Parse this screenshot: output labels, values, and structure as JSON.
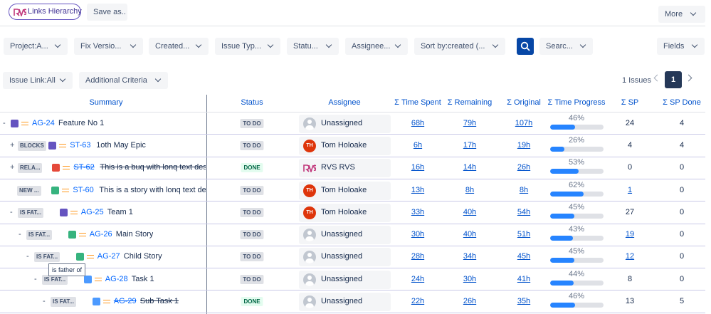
{
  "toolbar": {
    "links_hierarchy": "Links Hierarchy",
    "save_as": "Save as..",
    "more": "More"
  },
  "filters": [
    "Project:A...",
    "Fix Versio...",
    "Created...",
    "Issue Typ...",
    "Statu...",
    "Assignee...",
    "Sort by:created (...",
    "Searc..."
  ],
  "fields": "Fields",
  "filters2": [
    "Issue Link:All",
    "Additional Criteria"
  ],
  "pagination": {
    "count": "1 Issues",
    "page": "1"
  },
  "tooltip": "is father of",
  "table": {
    "columns": [
      "Summary",
      "Status",
      "Assignee",
      "Σ Time Spent",
      "Σ Remaining",
      "Σ Original",
      "Σ Time Progress",
      "Σ SP",
      "Σ SP Done"
    ],
    "rows": [
      {
        "toggle": "-",
        "key": "AG-24",
        "summary": "Feature No 1",
        "status": "TO DO",
        "assignee": "Unassigned",
        "spent": "68h",
        "remaining": "79h",
        "original": "107h",
        "progress": {
          "value": 46,
          "label": "46%"
        },
        "sp": 24,
        "sp_done": 4
      },
      {
        "toggle": "+",
        "link": "BLOCKS",
        "key": "ST-63",
        "summary": "1oth May Epic",
        "status": "TO DO",
        "avatar": "TH",
        "assignee": "Tom Holoake",
        "spent": "6h",
        "remaining": "17h",
        "original": "19h",
        "progress": {
          "value": 26,
          "label": "26%"
        },
        "sp": 4,
        "sp_done": 4
      },
      {
        "toggle": "+",
        "link": "RELA...",
        "key": "ST-62",
        "summary": "This is a buq with lonq text descr...",
        "status": "DONE",
        "assignee": "RVS RVS",
        "spent": "16h",
        "remaining": "14h",
        "original": "26h",
        "progress": {
          "value": 53,
          "label": "53%"
        },
        "sp": 0,
        "sp_done": 0
      },
      {
        "link": "NEW ...",
        "key": "ST-60",
        "summary": "This is a story with lonq text des...",
        "status": "TO DO",
        "avatar": "TH",
        "assignee": "Tom Holoake",
        "spent": "13h",
        "remaining": "8h",
        "original": "8h",
        "progress": {
          "value": 62,
          "label": "62%"
        },
        "sp": 1,
        "sp_done": 0
      },
      {
        "toggle": "-",
        "link": "IS FAT...",
        "key": "AG-25",
        "summary": "Team 1",
        "status": "TO DO",
        "avatar": "TH",
        "assignee": "Tom Holoake",
        "spent": "33h",
        "remaining": "40h",
        "original": "54h",
        "progress": {
          "value": 45,
          "label": "45%"
        },
        "sp": 27,
        "sp_done": 0
      },
      {
        "toggle": "-",
        "link": "IS FAT...",
        "key": "AG-26",
        "summary": "Main Story",
        "status": "TO DO",
        "assignee": "Unassigned",
        "spent": "30h",
        "remaining": "40h",
        "original": "51h",
        "progress": {
          "value": 43,
          "label": "43%"
        },
        "sp": 19,
        "sp_done": 0
      },
      {
        "toggle": "-",
        "link": "IS FAT...",
        "key": "AG-27",
        "summary": "Child Story",
        "status": "TO DO",
        "assignee": "Unassigned",
        "spent": "28h",
        "remaining": "34h",
        "original": "45h",
        "progress": {
          "value": 45,
          "label": "45%"
        },
        "sp": 12,
        "sp_done": 0
      },
      {
        "toggle": "-",
        "link": "IS FAT...",
        "key": "AG-28",
        "summary": "Task 1",
        "status": "TO DO",
        "assignee": "Unassigned",
        "spent": "24h",
        "remaining": "30h",
        "original": "41h",
        "progress": {
          "value": 44,
          "label": "44%"
        },
        "sp": 8,
        "sp_done": 0
      },
      {
        "toggle": "-",
        "link": "IS FAT...",
        "key": "AG-29",
        "summary": "Sub Task 1",
        "status": "DONE",
        "assignee": "Unassigned",
        "spent": "22h",
        "remaining": "26h",
        "original": "35h",
        "progress": {
          "value": 46,
          "label": "46%"
        },
        "sp": 13,
        "sp_done": 5
      }
    ]
  }
}
